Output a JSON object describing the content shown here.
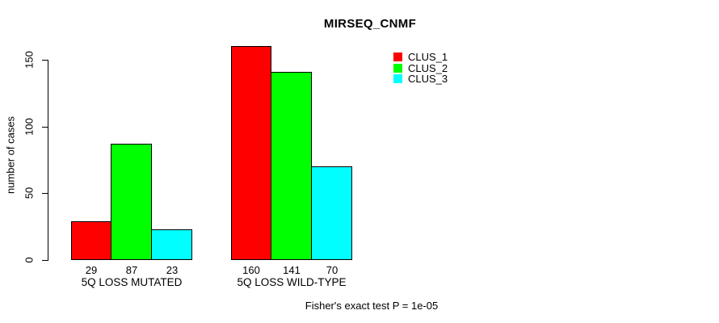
{
  "chart_data": {
    "type": "bar",
    "title": "MIRSEQ_CNMF",
    "ylabel": "number of cases",
    "xlabel": "",
    "categories": [
      "5Q LOSS MUTATED",
      "5Q LOSS WILD-TYPE"
    ],
    "series": [
      {
        "name": "CLUS_1",
        "color": "#FF0000",
        "values": [
          29,
          160
        ]
      },
      {
        "name": "CLUS_2",
        "color": "#00FF00",
        "values": [
          87,
          141
        ]
      },
      {
        "name": "CLUS_3",
        "color": "#00FFFF",
        "values": [
          23,
          70
        ]
      }
    ],
    "ylim": [
      0,
      150
    ],
    "yticks": [
      0,
      50,
      100,
      150
    ],
    "grid": false,
    "legend_position": "top-right",
    "bar_labels_shown": true,
    "caption": "Fisher's exact test P = 1e-05",
    "text_color": "#000000",
    "background_color": "#ffffff"
  }
}
